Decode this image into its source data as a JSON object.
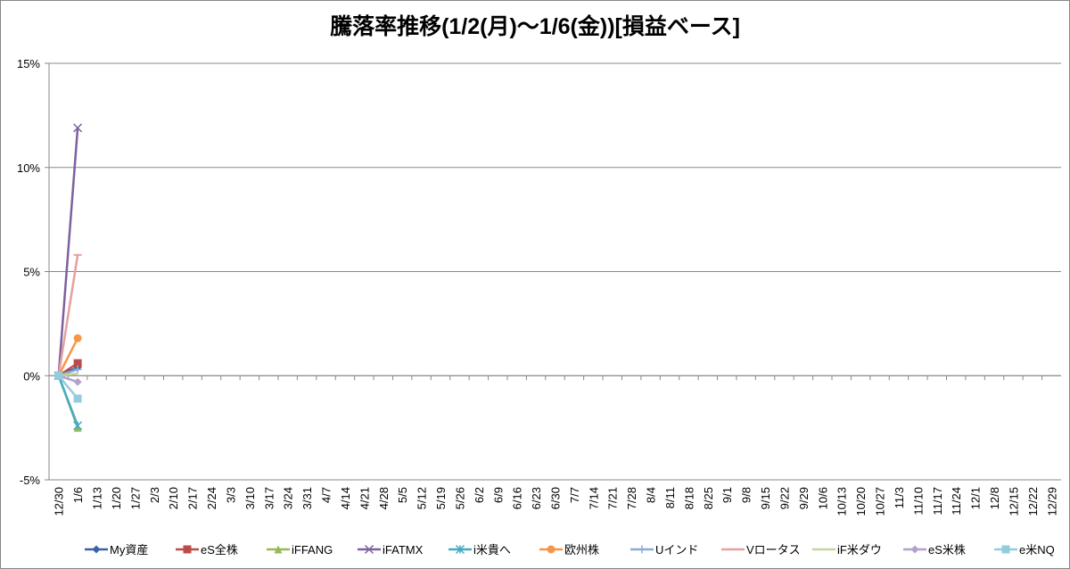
{
  "chart_data": {
    "type": "line",
    "title": "騰落率推移(1/2(月)～1/6(金))[損益ベース]",
    "categories": [
      "12/30",
      "1/6",
      "1/13",
      "1/20",
      "1/27",
      "2/3",
      "2/10",
      "2/17",
      "2/24",
      "3/3",
      "3/10",
      "3/17",
      "3/24",
      "3/31",
      "4/7",
      "4/14",
      "4/21",
      "4/28",
      "5/5",
      "5/12",
      "5/19",
      "5/26",
      "6/2",
      "6/9",
      "6/16",
      "6/23",
      "6/30",
      "7/7",
      "7/14",
      "7/21",
      "7/28",
      "8/4",
      "8/11",
      "8/18",
      "8/25",
      "9/1",
      "9/8",
      "9/15",
      "9/22",
      "9/29",
      "10/6",
      "10/13",
      "10/20",
      "10/27",
      "11/3",
      "11/10",
      "11/17",
      "11/24",
      "12/1",
      "12/8",
      "12/15",
      "12/22",
      "12/29"
    ],
    "ylim": [
      -5,
      15
    ],
    "yticks": [
      {
        "value": -5,
        "label": "-5%"
      },
      {
        "value": 0,
        "label": "0%"
      },
      {
        "value": 5,
        "label": "5%"
      },
      {
        "value": 10,
        "label": "10%"
      },
      {
        "value": 15,
        "label": "15%"
      }
    ],
    "grid": true,
    "legend": "bottom",
    "series": [
      {
        "name": "My資産",
        "color": "#3a62a7",
        "marker": "diamond",
        "values": [
          0,
          0.4,
          null,
          null,
          null,
          null,
          null,
          null,
          null,
          null,
          null,
          null,
          null,
          null,
          null,
          null,
          null,
          null,
          null,
          null,
          null,
          null,
          null,
          null,
          null,
          null,
          null,
          null,
          null,
          null,
          null,
          null,
          null,
          null,
          null,
          null,
          null,
          null,
          null,
          null,
          null,
          null,
          null,
          null,
          null,
          null,
          null,
          null,
          null,
          null,
          null,
          null,
          null
        ]
      },
      {
        "name": "eS全株",
        "color": "#be4b48",
        "marker": "square",
        "values": [
          0,
          0.6,
          null,
          null,
          null,
          null,
          null,
          null,
          null,
          null,
          null,
          null,
          null,
          null,
          null,
          null,
          null,
          null,
          null,
          null,
          null,
          null,
          null,
          null,
          null,
          null,
          null,
          null,
          null,
          null,
          null,
          null,
          null,
          null,
          null,
          null,
          null,
          null,
          null,
          null,
          null,
          null,
          null,
          null,
          null,
          null,
          null,
          null,
          null,
          null,
          null,
          null,
          null
        ]
      },
      {
        "name": "iFFANG",
        "color": "#98b954",
        "marker": "triangle",
        "values": [
          0,
          -2.5,
          null,
          null,
          null,
          null,
          null,
          null,
          null,
          null,
          null,
          null,
          null,
          null,
          null,
          null,
          null,
          null,
          null,
          null,
          null,
          null,
          null,
          null,
          null,
          null,
          null,
          null,
          null,
          null,
          null,
          null,
          null,
          null,
          null,
          null,
          null,
          null,
          null,
          null,
          null,
          null,
          null,
          null,
          null,
          null,
          null,
          null,
          null,
          null,
          null,
          null,
          null
        ]
      },
      {
        "name": "iFATMX",
        "color": "#7d60a0",
        "marker": "x",
        "values": [
          0,
          11.9,
          null,
          null,
          null,
          null,
          null,
          null,
          null,
          null,
          null,
          null,
          null,
          null,
          null,
          null,
          null,
          null,
          null,
          null,
          null,
          null,
          null,
          null,
          null,
          null,
          null,
          null,
          null,
          null,
          null,
          null,
          null,
          null,
          null,
          null,
          null,
          null,
          null,
          null,
          null,
          null,
          null,
          null,
          null,
          null,
          null,
          null,
          null,
          null,
          null,
          null,
          null
        ]
      },
      {
        "name": "i米貴へ",
        "color": "#46aac5",
        "marker": "star",
        "values": [
          0,
          -2.4,
          null,
          null,
          null,
          null,
          null,
          null,
          null,
          null,
          null,
          null,
          null,
          null,
          null,
          null,
          null,
          null,
          null,
          null,
          null,
          null,
          null,
          null,
          null,
          null,
          null,
          null,
          null,
          null,
          null,
          null,
          null,
          null,
          null,
          null,
          null,
          null,
          null,
          null,
          null,
          null,
          null,
          null,
          null,
          null,
          null,
          null,
          null,
          null,
          null,
          null,
          null
        ]
      },
      {
        "name": "欧州株",
        "color": "#f79646",
        "marker": "circle",
        "values": [
          0,
          1.8,
          null,
          null,
          null,
          null,
          null,
          null,
          null,
          null,
          null,
          null,
          null,
          null,
          null,
          null,
          null,
          null,
          null,
          null,
          null,
          null,
          null,
          null,
          null,
          null,
          null,
          null,
          null,
          null,
          null,
          null,
          null,
          null,
          null,
          null,
          null,
          null,
          null,
          null,
          null,
          null,
          null,
          null,
          null,
          null,
          null,
          null,
          null,
          null,
          null,
          null,
          null
        ]
      },
      {
        "name": "Uインド",
        "color": "#8eabd6",
        "marker": "plus",
        "values": [
          0,
          0.3,
          null,
          null,
          null,
          null,
          null,
          null,
          null,
          null,
          null,
          null,
          null,
          null,
          null,
          null,
          null,
          null,
          null,
          null,
          null,
          null,
          null,
          null,
          null,
          null,
          null,
          null,
          null,
          null,
          null,
          null,
          null,
          null,
          null,
          null,
          null,
          null,
          null,
          null,
          null,
          null,
          null,
          null,
          null,
          null,
          null,
          null,
          null,
          null,
          null,
          null,
          null
        ]
      },
      {
        "name": "Vロータス",
        "color": "#e6a0a0",
        "marker": "dash",
        "values": [
          0,
          5.8,
          null,
          null,
          null,
          null,
          null,
          null,
          null,
          null,
          null,
          null,
          null,
          null,
          null,
          null,
          null,
          null,
          null,
          null,
          null,
          null,
          null,
          null,
          null,
          null,
          null,
          null,
          null,
          null,
          null,
          null,
          null,
          null,
          null,
          null,
          null,
          null,
          null,
          null,
          null,
          null,
          null,
          null,
          null,
          null,
          null,
          null,
          null,
          null,
          null,
          null,
          null
        ]
      },
      {
        "name": "iF米ダウ",
        "color": "#c3d69b",
        "marker": "none",
        "values": [
          0,
          0.1,
          null,
          null,
          null,
          null,
          null,
          null,
          null,
          null,
          null,
          null,
          null,
          null,
          null,
          null,
          null,
          null,
          null,
          null,
          null,
          null,
          null,
          null,
          null,
          null,
          null,
          null,
          null,
          null,
          null,
          null,
          null,
          null,
          null,
          null,
          null,
          null,
          null,
          null,
          null,
          null,
          null,
          null,
          null,
          null,
          null,
          null,
          null,
          null,
          null,
          null,
          null
        ]
      },
      {
        "name": "eS米株",
        "color": "#b3a2c7",
        "marker": "diamond",
        "values": [
          0,
          -0.3,
          null,
          null,
          null,
          null,
          null,
          null,
          null,
          null,
          null,
          null,
          null,
          null,
          null,
          null,
          null,
          null,
          null,
          null,
          null,
          null,
          null,
          null,
          null,
          null,
          null,
          null,
          null,
          null,
          null,
          null,
          null,
          null,
          null,
          null,
          null,
          null,
          null,
          null,
          null,
          null,
          null,
          null,
          null,
          null,
          null,
          null,
          null,
          null,
          null,
          null,
          null
        ]
      },
      {
        "name": "e米NQ",
        "color": "#93cddd",
        "marker": "square",
        "values": [
          0,
          -1.1,
          null,
          null,
          null,
          null,
          null,
          null,
          null,
          null,
          null,
          null,
          null,
          null,
          null,
          null,
          null,
          null,
          null,
          null,
          null,
          null,
          null,
          null,
          null,
          null,
          null,
          null,
          null,
          null,
          null,
          null,
          null,
          null,
          null,
          null,
          null,
          null,
          null,
          null,
          null,
          null,
          null,
          null,
          null,
          null,
          null,
          null,
          null,
          null,
          null,
          null,
          null
        ]
      }
    ]
  }
}
